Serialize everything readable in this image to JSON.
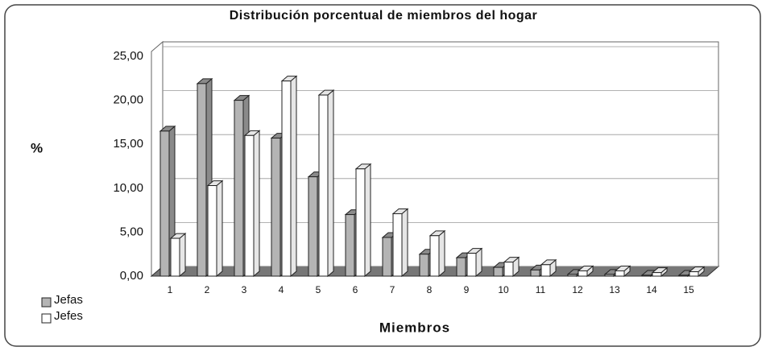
{
  "chart_data": {
    "type": "bar3d",
    "title": "Distribución porcentual de miembros del hogar",
    "y_label": "%",
    "x_label": "Miembros",
    "categories": [
      "1",
      "2",
      "3",
      "4",
      "5",
      "6",
      "7",
      "8",
      "9",
      "10",
      "11",
      "12",
      "13",
      "14",
      "15"
    ],
    "series": [
      {
        "name": "Jefas",
        "color": "#b4b4b4",
        "values": [
          16.5,
          21.9,
          20.0,
          15.7,
          11.3,
          7.0,
          4.4,
          2.5,
          2.1,
          1.0,
          0.7,
          0.2,
          0.2,
          0.1,
          0.1
        ]
      },
      {
        "name": "Jefes",
        "color": "#ffffff",
        "values": [
          4.3,
          10.3,
          16.0,
          22.2,
          20.6,
          12.2,
          7.1,
          4.6,
          2.6,
          1.6,
          1.3,
          0.6,
          0.6,
          0.4,
          0.5
        ]
      }
    ],
    "ylim": [
      0,
      25
    ],
    "yticks": [
      {
        "value": 0,
        "label": "0,00"
      },
      {
        "value": 5,
        "label": "5,00"
      },
      {
        "value": 10,
        "label": "10,00"
      },
      {
        "value": 15,
        "label": "15,00"
      },
      {
        "value": 20,
        "label": "20,00"
      },
      {
        "value": 25,
        "label": "25,00"
      }
    ],
    "grid": true,
    "legend": "bottom-left"
  }
}
